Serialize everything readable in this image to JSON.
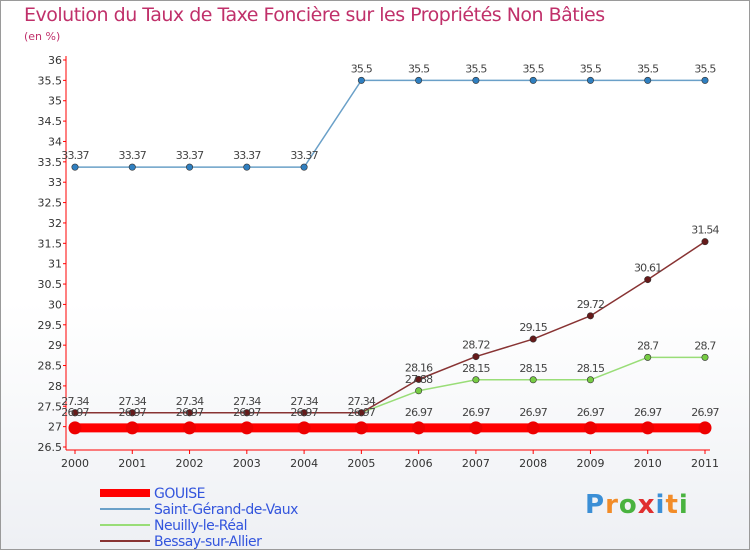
{
  "chart_data": {
    "type": "line",
    "title": "Evolution du Taux de Taxe Foncière sur les Propriétés Non Bâties",
    "subtitle": "(en %)",
    "xlabel": "",
    "ylabel": "",
    "ylim": [
      26.5,
      36
    ],
    "ytick_step": 0.5,
    "grid": false,
    "categories": [
      "2000",
      "2001",
      "2002",
      "2003",
      "2004",
      "2005",
      "2006",
      "2007",
      "2008",
      "2009",
      "2010",
      "2011"
    ],
    "series": [
      {
        "name": "GOUISE",
        "color": "#ff0000",
        "point_color": "#ee0000",
        "values": [
          26.97,
          26.97,
          26.97,
          26.97,
          26.97,
          26.97,
          26.97,
          26.97,
          26.97,
          26.97,
          26.97,
          26.97
        ],
        "labels": [
          "26.97",
          "26.97",
          "26.97",
          "26.97",
          "26.97",
          "26.97",
          "26.97",
          "26.97",
          "26.97",
          "26.97",
          "26.97",
          "26.97"
        ]
      },
      {
        "name": "Saint-Gérand-de-Vaux",
        "color": "#6aa0c8",
        "point_color": "#2f7fc0",
        "values": [
          33.37,
          33.37,
          33.37,
          33.37,
          33.37,
          35.5,
          35.5,
          35.5,
          35.5,
          35.5,
          35.5,
          35.5
        ],
        "labels": [
          "33.37",
          "33.37",
          "33.37",
          "33.37",
          "33.37",
          "35.5",
          "35.5",
          "35.5",
          "35.5",
          "35.5",
          "35.5",
          "35.5"
        ]
      },
      {
        "name": "Neuilly-le-Réal",
        "color": "#99dd77",
        "point_color": "#77cc44",
        "values": [
          27.34,
          27.34,
          27.34,
          27.34,
          27.34,
          27.34,
          27.88,
          28.15,
          28.15,
          28.15,
          28.7,
          28.7
        ],
        "labels": [
          "",
          "",
          "",
          "",
          "",
          "",
          "27.88",
          "28.15",
          "28.15",
          "28.15",
          "28.7",
          "28.7"
        ]
      },
      {
        "name": "Bessay-sur-Allier",
        "color": "#883333",
        "point_color": "#661a1a",
        "values": [
          27.34,
          27.34,
          27.34,
          27.34,
          27.34,
          27.34,
          28.16,
          28.72,
          29.15,
          29.72,
          30.61,
          31.54
        ],
        "labels": [
          "27.34",
          "27.34",
          "27.34",
          "27.34",
          "27.34",
          "27.34",
          "28.16",
          "28.72",
          "29.15",
          "29.72",
          "30.61",
          "31.54"
        ]
      }
    ]
  },
  "branding": {
    "logo_text": "Proxiti"
  }
}
